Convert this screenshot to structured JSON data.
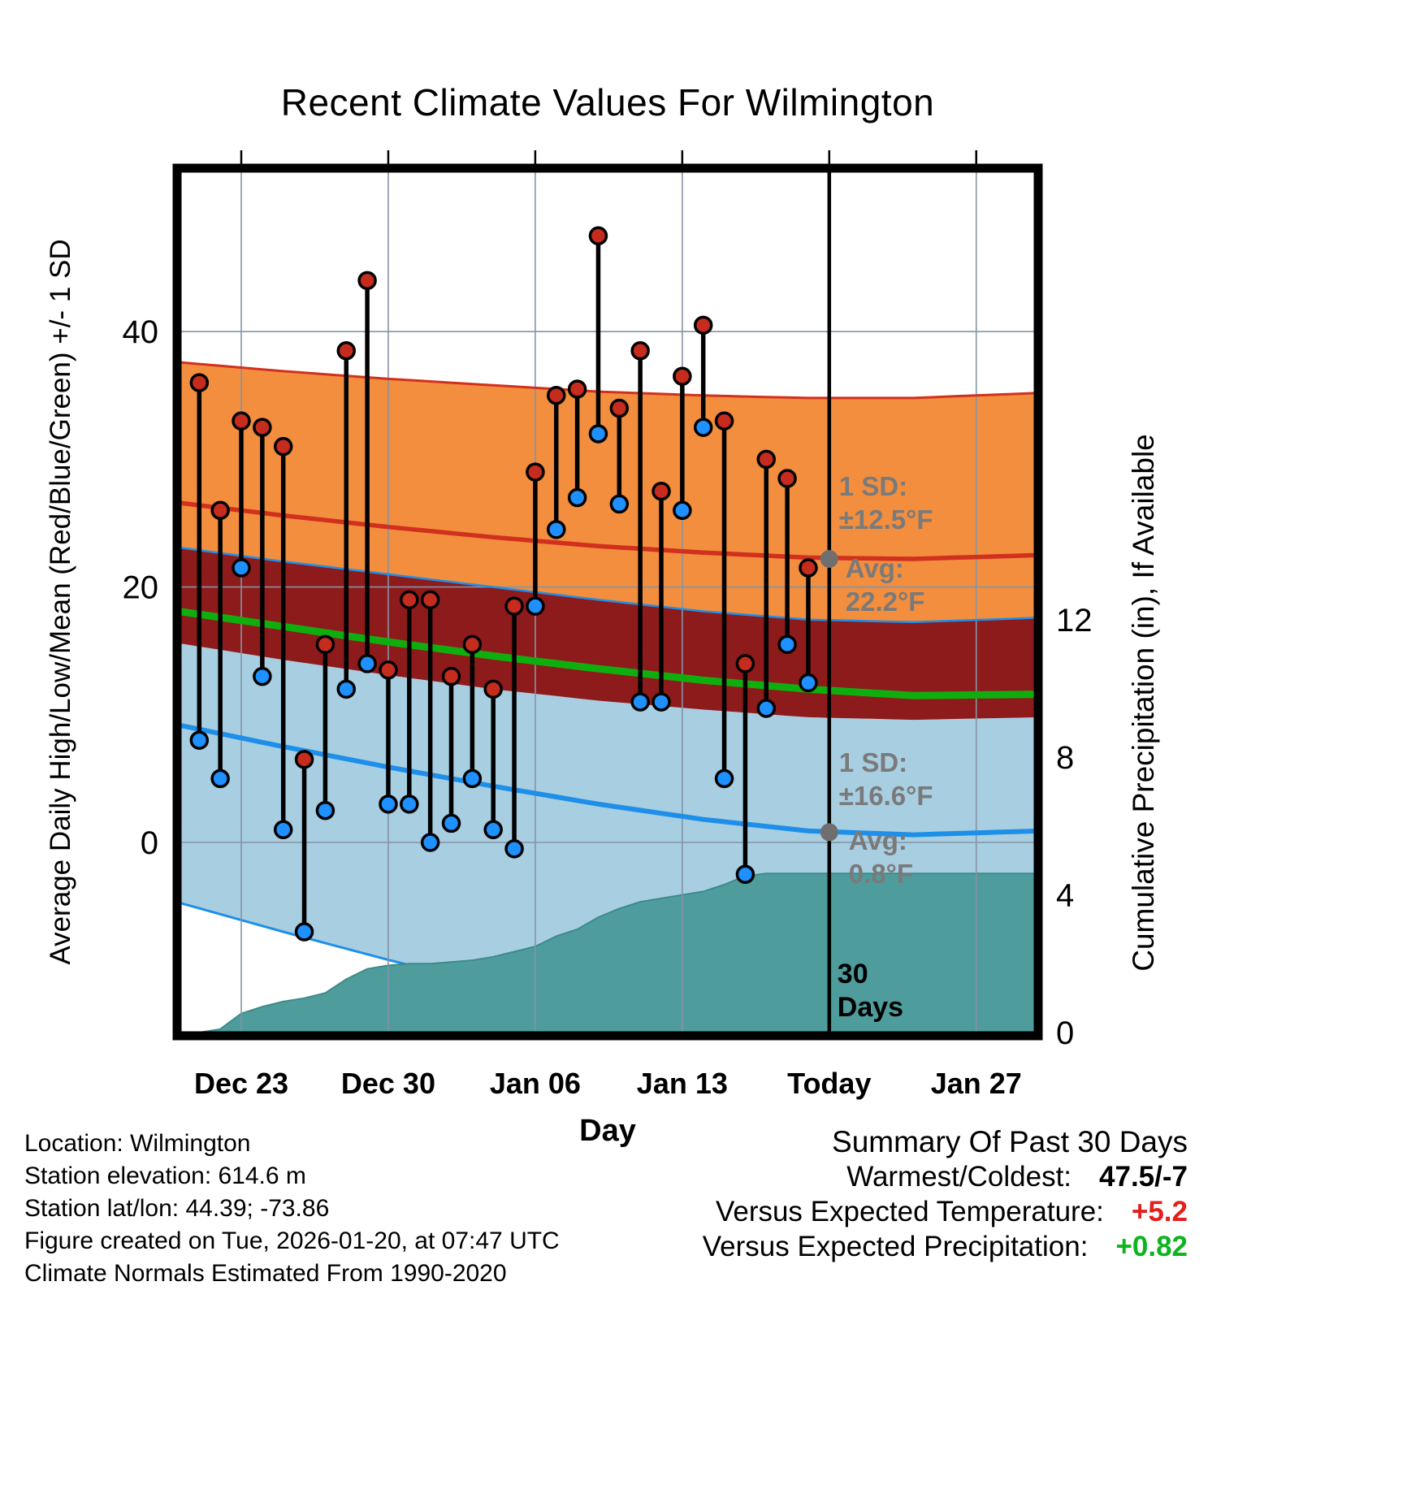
{
  "chart_data": {
    "type": "line",
    "title": "Recent Climate Values For Wilmington",
    "xlabel": "Day",
    "ylabel_left": "Average Daily High/Low/Mean (Red/Blue/Green) +/- 1 SD",
    "ylabel_right": "Cumulative Precipitation (in), If Available",
    "x_ticks": [
      {
        "label": "Dec 23",
        "day": 3
      },
      {
        "label": "Dec 30",
        "day": 10
      },
      {
        "label": "Jan 06",
        "day": 17
      },
      {
        "label": "Jan 13",
        "day": 24
      },
      {
        "label": "Today",
        "day": 31
      },
      {
        "label": "Jan 27",
        "day": 38
      }
    ],
    "yticks_left": [
      {
        "label": "0",
        "value": 0
      },
      {
        "label": "20",
        "value": 20
      },
      {
        "label": "40",
        "value": 40
      }
    ],
    "yticks_right": [
      {
        "label": "0",
        "value": 0
      },
      {
        "label": "4",
        "value": 4
      },
      {
        "label": "8",
        "value": 8
      },
      {
        "label": "12",
        "value": 12
      }
    ],
    "ylim_left": [
      -15.2,
      52.9
    ],
    "ylim_right": [
      0,
      25.2
    ],
    "today_day": 31,
    "day0_note": "day index 0 = Dec 20",
    "daily": {
      "start_day": 1,
      "dates": [
        "Dec 21",
        "Dec 22",
        "Dec 23",
        "Dec 24",
        "Dec 25",
        "Dec 26",
        "Dec 27",
        "Dec 28",
        "Dec 29",
        "Dec 30",
        "Dec 31",
        "Jan 01",
        "Jan 02",
        "Jan 03",
        "Jan 04",
        "Jan 05",
        "Jan 06",
        "Jan 07",
        "Jan 08",
        "Jan 09",
        "Jan 10",
        "Jan 11",
        "Jan 12",
        "Jan 13",
        "Jan 14",
        "Jan 15",
        "Jan 16",
        "Jan 17",
        "Jan 18",
        "Jan 19"
      ],
      "high": [
        36,
        26,
        33,
        32.5,
        31,
        6.5,
        15.5,
        38.5,
        44,
        13.5,
        19,
        19,
        13,
        15.5,
        12,
        18.5,
        29,
        35,
        35.5,
        47.5,
        34,
        38.5,
        27.5,
        36.5,
        40.5,
        33,
        14,
        30,
        28.5,
        21.5
      ],
      "low": [
        8,
        5,
        21.5,
        13,
        1,
        -7,
        2.5,
        12,
        14,
        3,
        3,
        0,
        1.5,
        5,
        1,
        -0.5,
        18.5,
        24.5,
        27,
        32,
        26.5,
        11,
        11,
        26,
        32.5,
        5,
        -2.5,
        10.5,
        15.5,
        12.5
      ]
    },
    "climatology": {
      "days": [
        0,
        5,
        10,
        15,
        20,
        25,
        30,
        35,
        41
      ],
      "high_avg": [
        26.6,
        25.6,
        24.7,
        23.9,
        23.2,
        22.7,
        22.3,
        22.2,
        22.5
      ],
      "high_sd": [
        11.0,
        11.3,
        11.6,
        11.9,
        12.1,
        12.3,
        12.5,
        12.6,
        12.7
      ],
      "mean_avg": [
        18.1,
        16.9,
        15.7,
        14.6,
        13.6,
        12.7,
        12.0,
        11.5,
        11.6
      ],
      "low_avg": [
        9.2,
        7.5,
        5.9,
        4.4,
        3.0,
        1.8,
        0.9,
        0.6,
        0.9
      ],
      "low_sd": [
        13.9,
        14.5,
        15.1,
        15.6,
        16.0,
        16.3,
        16.55,
        16.65,
        16.7
      ]
    },
    "precip_cumulative": {
      "start_day": 0,
      "values": [
        0,
        0,
        0.1,
        0.55,
        0.75,
        0.9,
        1.0,
        1.15,
        1.55,
        1.85,
        1.95,
        2.0,
        2.0,
        2.05,
        2.1,
        2.2,
        2.35,
        2.5,
        2.8,
        3.0,
        3.35,
        3.6,
        3.8,
        3.9,
        4.0,
        4.1,
        4.3,
        4.55,
        4.62,
        4.62,
        4.62,
        4.62,
        4.62,
        4.62,
        4.62,
        4.62,
        4.62,
        4.62,
        4.62,
        4.62,
        4.62,
        4.62
      ]
    },
    "colors": {
      "high_band": "#F28E3E",
      "overlap_band": "#8E1B1B",
      "low_band": "#A8CEE2",
      "precip_fill": "#4E9C9C",
      "precip_edge": "#3E8A8A",
      "high_line": "#D2301E",
      "low_line": "#1E8FE8",
      "mean_line": "#0FAE0F",
      "high_dot": "#C62C1E",
      "low_dot": "#1E90FF",
      "stem": "#000000",
      "gray_marker": "#6F6F6F",
      "gray_text": "#7A7A7A",
      "grid": "#8494A4"
    }
  },
  "annotations": {
    "high_band": {
      "sd_lines": [
        "1 SD:",
        "±12.5°F"
      ],
      "avg_lines": [
        "Avg:",
        "22.2°F"
      ],
      "avg_value": 22.2
    },
    "low_band": {
      "sd_lines": [
        "1 SD:",
        "±16.6°F"
      ],
      "avg_lines": [
        "Avg:",
        "0.8°F"
      ],
      "avg_value": 0.8
    },
    "today_lines": [
      "30",
      "Days"
    ]
  },
  "footer_left": {
    "lines": [
      "Location: Wilmington",
      "Station elevation: 614.6 m",
      "Station lat/lon: 44.39; -73.86",
      "Figure created on Tue, 2026-01-20, at 07:47 UTC",
      "Climate Normals Estimated From 1990-2020"
    ]
  },
  "summary": {
    "title": "Summary Of Past 30 Days",
    "rows": [
      {
        "label": "Warmest/Coldest:",
        "value": "47.5/-7",
        "color": "#000000"
      },
      {
        "label": "Versus Expected Temperature:",
        "value": "+5.2",
        "color": "#E3201B"
      },
      {
        "label": "Versus Expected Precipitation:",
        "value": "+0.82",
        "color": "#0CB41E"
      }
    ]
  }
}
